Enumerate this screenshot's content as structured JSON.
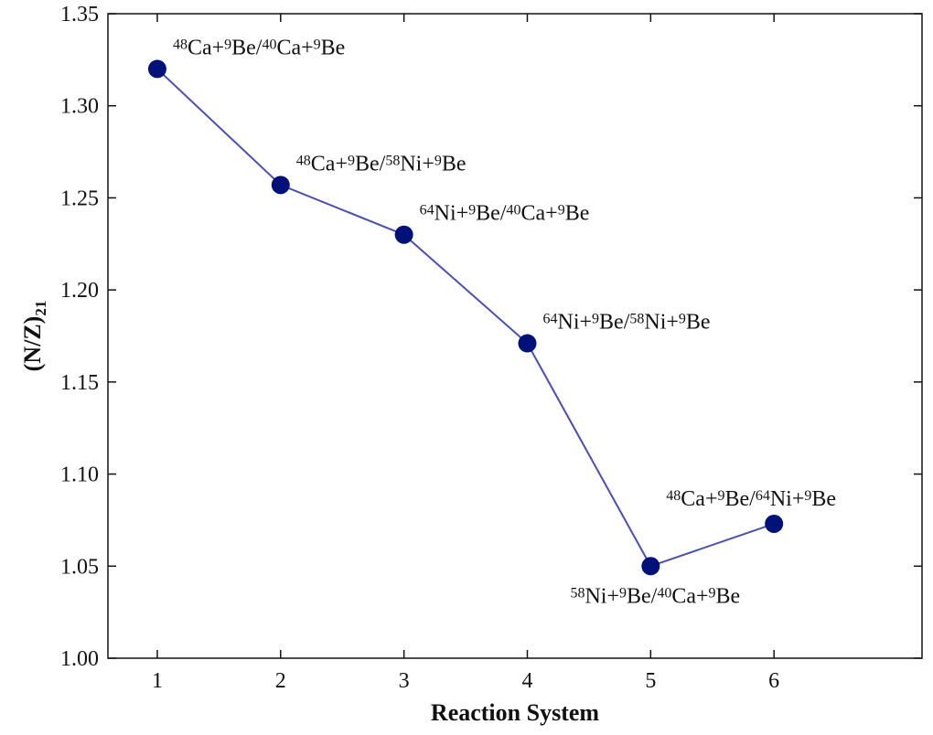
{
  "chart_data": {
    "type": "line",
    "xlabel": "Reaction System",
    "ylabel_main": "(N/Z)",
    "ylabel_sub": "21",
    "xlim": [
      0.6,
      7.2
    ],
    "ylim": [
      1.0,
      1.35
    ],
    "xticks": [
      1,
      2,
      3,
      4,
      5,
      6
    ],
    "yticks": [
      1.0,
      1.05,
      1.1,
      1.15,
      1.2,
      1.25,
      1.3,
      1.35
    ],
    "grid": false,
    "legend": "none",
    "series": [
      {
        "color": "#00127a",
        "line_color": "#4a4fb0",
        "x": [
          1,
          2,
          3,
          4,
          5,
          6
        ],
        "y": [
          1.32,
          1.257,
          1.23,
          1.171,
          1.05,
          1.073
        ],
        "labels": [
          {
            "text": "⁴⁸Ca+⁹Be/⁴⁰Ca+⁹Be",
            "parts": [
              [
                "48",
                "sup"
              ],
              [
                "Ca+",
                ""
              ],
              [
                "9",
                "sup"
              ],
              [
                "Be/",
                ""
              ],
              [
                "40",
                "sup"
              ],
              [
                "Ca+",
                ""
              ],
              [
                "9",
                "sup"
              ],
              [
                "Be",
                ""
              ]
            ],
            "pos": "above-right"
          },
          {
            "text": "⁴⁸Ca+⁹Be/⁵⁸Ni+⁹Be",
            "parts": [
              [
                "48",
                "sup"
              ],
              [
                "Ca+",
                ""
              ],
              [
                "9",
                "sup"
              ],
              [
                "Be/",
                ""
              ],
              [
                "58",
                "sup"
              ],
              [
                "Ni+",
                ""
              ],
              [
                "9",
                "sup"
              ],
              [
                "Be",
                ""
              ]
            ],
            "pos": "above-right"
          },
          {
            "text": "⁶⁴Ni+⁹Be/⁴⁰Ca+⁹Be",
            "parts": [
              [
                "64",
                "sup"
              ],
              [
                "Ni+",
                ""
              ],
              [
                "9",
                "sup"
              ],
              [
                "Be/",
                ""
              ],
              [
                "40",
                "sup"
              ],
              [
                "Ca+",
                ""
              ],
              [
                "9",
                "sup"
              ],
              [
                "Be",
                ""
              ]
            ],
            "pos": "above-right"
          },
          {
            "text": "⁶⁴Ni+⁹Be/⁵⁸Ni+⁹Be",
            "parts": [
              [
                "64",
                "sup"
              ],
              [
                "Ni+",
                ""
              ],
              [
                "9",
                "sup"
              ],
              [
                "Be/",
                ""
              ],
              [
                "58",
                "sup"
              ],
              [
                "Ni+",
                ""
              ],
              [
                "9",
                "sup"
              ],
              [
                "Be",
                ""
              ]
            ],
            "pos": "above-right"
          },
          {
            "text": "⁵⁸Ni+⁹Be/⁴⁰Ca+⁹Be",
            "parts": [
              [
                "58",
                "sup"
              ],
              [
                "Ni+",
                ""
              ],
              [
                "9",
                "sup"
              ],
              [
                "Be/",
                ""
              ],
              [
                "40",
                "sup"
              ],
              [
                "Ca+",
                ""
              ],
              [
                "9",
                "sup"
              ],
              [
                "Be",
                ""
              ]
            ],
            "pos": "below-left"
          },
          {
            "text": "⁴⁸Ca+⁹Be/⁶⁴Ni+⁹Be",
            "parts": [
              [
                "48",
                "sup"
              ],
              [
                "Ca+",
                ""
              ],
              [
                "9",
                "sup"
              ],
              [
                "Be/",
                ""
              ],
              [
                "64",
                "sup"
              ],
              [
                "Ni+",
                ""
              ],
              [
                "9",
                "sup"
              ],
              [
                "Be",
                ""
              ]
            ],
            "pos": "above-center"
          }
        ]
      }
    ]
  }
}
